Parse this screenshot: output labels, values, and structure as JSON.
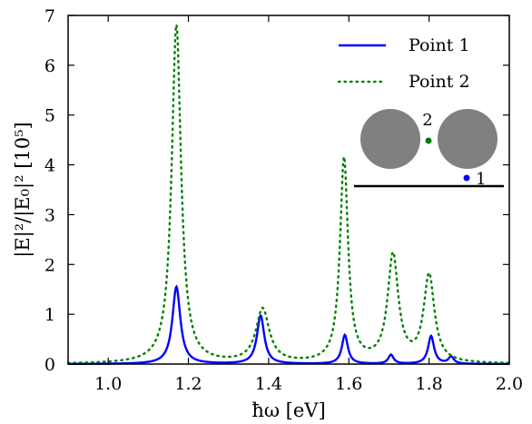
{
  "chart_data": {
    "type": "line",
    "xlabel": "ħω [eV]",
    "ylabel": "|E|²/|E₀|² [10⁵]",
    "xlim": [
      0.9,
      2.0
    ],
    "ylim": [
      0,
      7
    ],
    "xticks": [
      1.0,
      1.2,
      1.4,
      1.6,
      1.8,
      2.0
    ],
    "xtick_labels": [
      "1.0",
      "1.2",
      "1.4",
      "1.6",
      "1.8",
      "2.0"
    ],
    "yticks": [
      0,
      1,
      2,
      3,
      4,
      5,
      6,
      7
    ],
    "ytick_labels": [
      "0",
      "1",
      "2",
      "3",
      "4",
      "5",
      "6",
      "7"
    ],
    "grid": false,
    "legend_position": "top-right",
    "series": [
      {
        "name": "Point 1",
        "style": "solid",
        "color": "#0000ff",
        "peaks": [
          {
            "x": 1.17,
            "height": 1.55,
            "width": 0.012
          },
          {
            "x": 1.38,
            "height": 0.97,
            "width": 0.011
          },
          {
            "x": 1.59,
            "height": 0.58,
            "width": 0.009
          },
          {
            "x": 1.705,
            "height": 0.18,
            "width": 0.008
          },
          {
            "x": 1.805,
            "height": 0.56,
            "width": 0.009
          },
          {
            "x": 1.855,
            "height": 0.14,
            "width": 0.008
          }
        ]
      },
      {
        "name": "Point 2",
        "style": "dotted",
        "color": "#008000",
        "peaks": [
          {
            "x": 1.17,
            "height": 6.8,
            "width": 0.014
          },
          {
            "x": 1.385,
            "height": 1.08,
            "width": 0.02
          },
          {
            "x": 1.588,
            "height": 4.1,
            "width": 0.012
          },
          {
            "x": 1.71,
            "height": 2.15,
            "width": 0.016
          },
          {
            "x": 1.8,
            "height": 1.75,
            "width": 0.016
          }
        ]
      }
    ],
    "inset": {
      "label_point1": "1",
      "label_point2": "2",
      "point1_color": "#0000ff",
      "point2_color": "#008000",
      "sphere_color": "#808080"
    }
  }
}
